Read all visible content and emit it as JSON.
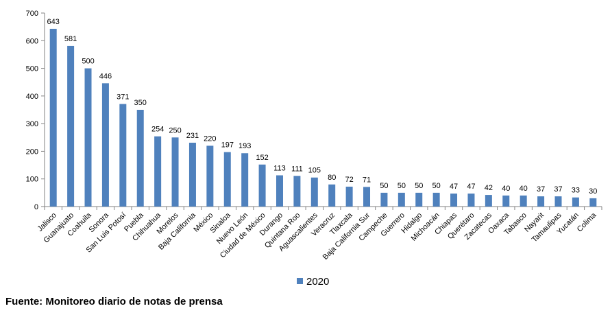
{
  "chart_data": {
    "type": "bar",
    "categories": [
      "Jalisco",
      "Guanajuato",
      "Coahuila",
      "Sonora",
      "San Luis Potosí",
      "Puebla",
      "Chihuahua",
      "Morelos",
      "Baja California",
      "México",
      "Sinaloa",
      "Nuevo León",
      "Ciudad de México",
      "Durango",
      "Quintana Roo",
      "Aguascalientes",
      "Veracruz",
      "Tlaxcala",
      "Baja California Sur",
      "Campeche",
      "Guerrero",
      "Hidalgo",
      "Michoacán",
      "Chiapas",
      "Querétaro",
      "Zacatecas",
      "Oaxaca",
      "Tabasco",
      "Nayarit",
      "Tamaulipas",
      "Yucatán",
      "Colima"
    ],
    "series": [
      {
        "name": "2020",
        "values": [
          643,
          581,
          500,
          446,
          371,
          350,
          254,
          250,
          231,
          220,
          197,
          193,
          152,
          113,
          111,
          105,
          80,
          72,
          71,
          50,
          50,
          50,
          50,
          47,
          47,
          42,
          40,
          40,
          37,
          37,
          33,
          30
        ]
      }
    ],
    "ylim": [
      0,
      700
    ],
    "yticks": [
      0,
      100,
      200,
      300,
      400,
      500,
      600,
      700
    ],
    "grid": false,
    "legend_position": "bottom",
    "bar_color": "#4F81BD",
    "axis_color": "#808080"
  },
  "source_note": "Fuente: Monitoreo diario de notas de prensa"
}
